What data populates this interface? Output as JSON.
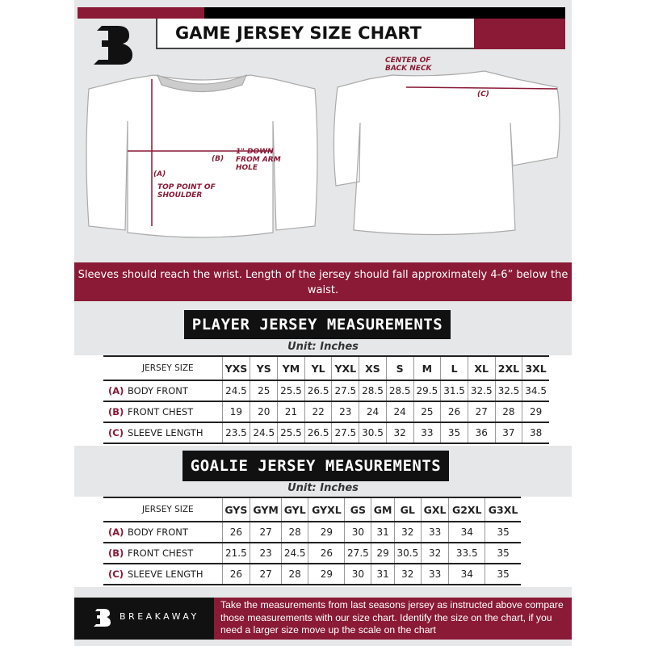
{
  "header": {
    "title": "GAME JERSEY SIZE CHART"
  },
  "diagram": {
    "label_a": "(A)",
    "label_a_text": "TOP POINT OF SHOULDER",
    "label_b": "(B)",
    "label_b_text": "1\" DOWN FROM ARM HOLE",
    "label_c": "(C)",
    "back_neck": "CENTER OF BACK NECK"
  },
  "note": "Sleeves should reach the wrist. Length of the jersey should fall approximately 4-6” below the waist.",
  "player": {
    "title": "PLAYER JERSEY MEASUREMENTS",
    "unit": "Unit: Inches",
    "header_label": "JERSEY SIZE",
    "sizes": [
      "YXS",
      "YS",
      "YM",
      "YL",
      "YXL",
      "XS",
      "S",
      "M",
      "L",
      "XL",
      "2XL",
      "3XL"
    ],
    "rows": [
      {
        "code": "(A)",
        "name": "BODY FRONT",
        "values": [
          "24.5",
          "25",
          "25.5",
          "26.5",
          "27.5",
          "28.5",
          "28.5",
          "29.5",
          "31.5",
          "32.5",
          "32.5",
          "34.5"
        ]
      },
      {
        "code": "(B)",
        "name": "FRONT CHEST",
        "values": [
          "19",
          "20",
          "21",
          "22",
          "23",
          "24",
          "24",
          "25",
          "26",
          "27",
          "28",
          "29"
        ]
      },
      {
        "code": "(C)",
        "name": "SLEEVE LENGTH",
        "values": [
          "23.5",
          "24.5",
          "25.5",
          "26.5",
          "27.5",
          "30.5",
          "32",
          "33",
          "35",
          "36",
          "37",
          "38"
        ]
      }
    ]
  },
  "goalie": {
    "title": "GOALIE JERSEY MEASUREMENTS",
    "unit": "Unit: Inches",
    "header_label": "JERSEY SIZE",
    "sizes": [
      "GYS",
      "GYM",
      "GYL",
      "GYXL",
      "GS",
      "GM",
      "GL",
      "GXL",
      "G2XL",
      "G3XL"
    ],
    "rows": [
      {
        "code": "(A)",
        "name": "BODY FRONT",
        "values": [
          "26",
          "27",
          "28",
          "29",
          "30",
          "31",
          "32",
          "33",
          "34",
          "35"
        ]
      },
      {
        "code": "(B)",
        "name": "FRONT CHEST",
        "values": [
          "21.5",
          "23",
          "24.5",
          "26",
          "27.5",
          "29",
          "30.5",
          "32",
          "33.5",
          "35"
        ]
      },
      {
        "code": "(C)",
        "name": "SLEEVE LENGTH",
        "values": [
          "26",
          "27",
          "28",
          "29",
          "30",
          "31",
          "32",
          "33",
          "34",
          "35"
        ]
      }
    ]
  },
  "footer": {
    "brand": "BREAKAWAY",
    "text": "Take the measurements from last seasons jersey as instructed above compare those measurements  with our size chart. Identify the size on the chart, if you need a larger size move up the scale on the chart"
  },
  "colors": {
    "maroon": "#8a1a36",
    "black": "#111111",
    "background": "#e6e7e8"
  }
}
